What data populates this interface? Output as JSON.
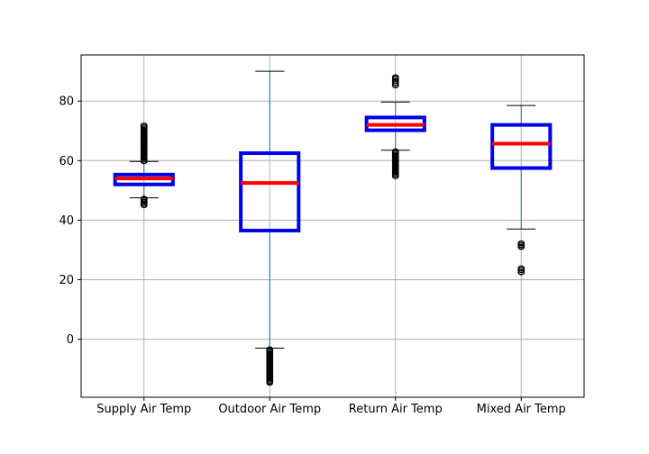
{
  "chart_data": {
    "type": "box",
    "categories": [
      "Supply Air Temp",
      "Outdoor Air Temp",
      "Return Air Temp",
      "Mixed Air Temp"
    ],
    "ylim": [
      -19.5,
      95.5
    ],
    "yticks": [
      0,
      20,
      40,
      60,
      80
    ],
    "grid": true,
    "colors": {
      "box": "#0000ee",
      "median": "#ff0000",
      "whisker": "#1f77b4",
      "cap": "#000000",
      "flier": "#000000",
      "grid": "#b0b0b0"
    },
    "boxes": [
      {
        "name": "Supply Air Temp",
        "q1": 52.0,
        "median": 54.0,
        "q3": 55.3,
        "whisker_low": 47.5,
        "whisker_high": 59.7,
        "fliers": [
          45.0,
          45.6,
          46.2,
          46.8,
          47.2,
          59.8,
          60.4,
          61.0,
          61.6,
          62.2,
          62.8,
          63.4,
          64.0,
          64.6,
          65.2,
          65.8,
          66.4,
          67.0,
          67.6,
          68.2,
          68.8,
          69.4,
          70.0,
          70.6,
          71.2,
          71.8
        ]
      },
      {
        "name": "Outdoor Air Temp",
        "q1": 36.5,
        "median": 52.5,
        "q3": 62.5,
        "whisker_low": -3.0,
        "whisker_high": 90.0,
        "fliers": [
          -3.4,
          -4.0,
          -4.6,
          -5.2,
          -5.8,
          -6.4,
          -7.0,
          -7.6,
          -8.2,
          -8.8,
          -9.4,
          -10.0,
          -10.6,
          -11.2,
          -11.8,
          -12.4,
          -13.0,
          -13.6,
          -14.2,
          -14.6
        ]
      },
      {
        "name": "Return Air Temp",
        "q1": 70.2,
        "median": 72.0,
        "q3": 74.5,
        "whisker_low": 63.5,
        "whisker_high": 79.7,
        "fliers": [
          54.8,
          55.4,
          56.0,
          56.6,
          57.2,
          57.8,
          58.4,
          59.0,
          59.6,
          60.2,
          60.8,
          61.4,
          62.0,
          62.6,
          63.1,
          85.3,
          86.0,
          86.8,
          87.5,
          88.0
        ]
      },
      {
        "name": "Mixed Air Temp",
        "q1": 57.5,
        "median": 65.7,
        "q3": 72.0,
        "whisker_low": 37.0,
        "whisker_high": 78.5,
        "fliers": [
          22.5,
          23.2,
          23.8,
          31.0,
          31.6,
          32.2
        ]
      }
    ]
  }
}
